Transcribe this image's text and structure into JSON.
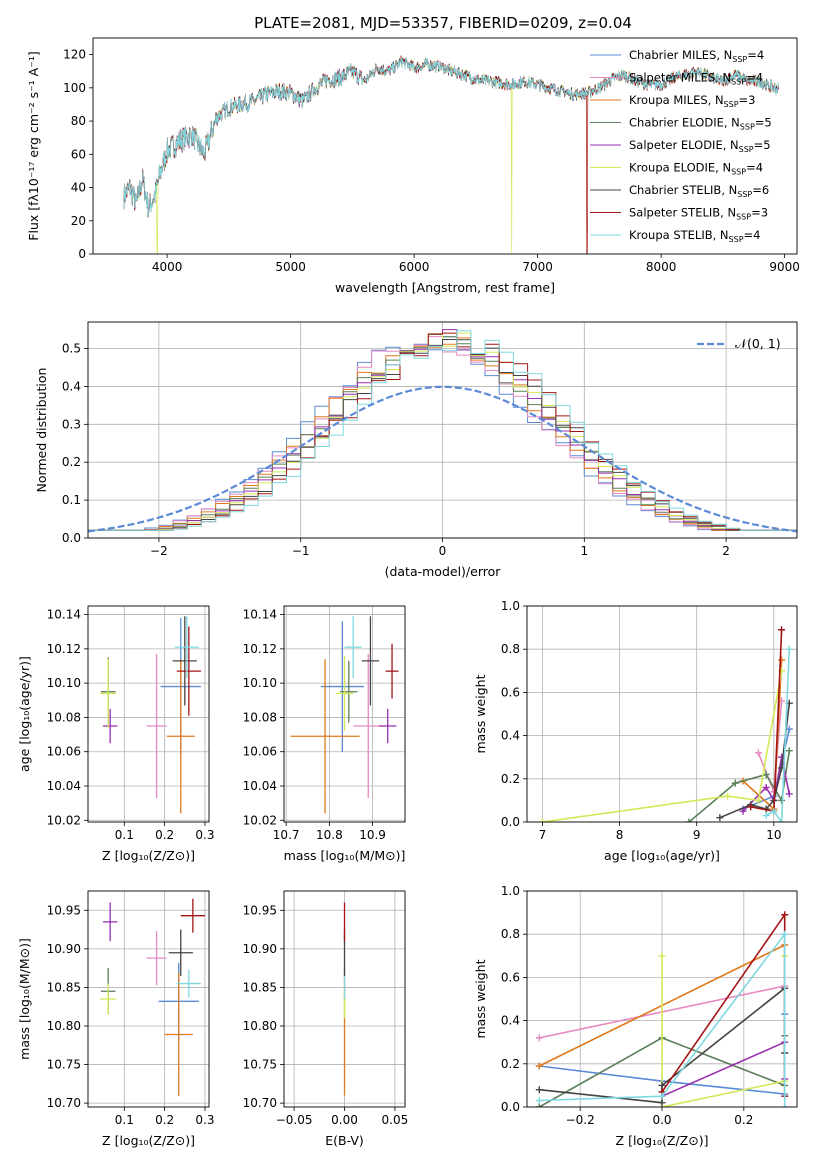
{
  "figure_title": "PLATE=2081, MJD=53357, FIBERID=0209, z=0.04",
  "colors": {
    "c1": "#5b8ad6",
    "c2": "#e689c3",
    "c3": "#e07a1f",
    "c4": "#5b7f5b",
    "c5": "#9a2fb0",
    "c6": "#d4e857",
    "c7": "#444444",
    "c8": "#a31515",
    "c9": "#7fd8e0"
  },
  "chart_data": [
    {
      "id": "spectrum",
      "type": "line",
      "title": "PLATE=2081, MJD=53357, FIBERID=0209, z=0.04",
      "xlabel": "wavelength [Angstrom, rest frame]",
      "ylabel": "Flux [fλ10⁻¹⁷ erg cm⁻² s⁻¹ A⁻¹]",
      "xlim": [
        3400,
        9100
      ],
      "ylim": [
        0,
        130
      ],
      "xticks": [
        "4000",
        "5000",
        "6000",
        "7000",
        "8000",
        "9000"
      ],
      "xtick_values": [
        4000,
        5000,
        6000,
        7000,
        8000,
        9000
      ],
      "yticks": [
        "0",
        "20",
        "40",
        "60",
        "80",
        "100",
        "120"
      ],
      "ytick_values": [
        0,
        20,
        40,
        60,
        80,
        100,
        120
      ],
      "legend": "top-right",
      "x": [
        3650,
        3700,
        3750,
        3800,
        3850,
        3900,
        3950,
        4000,
        4100,
        4200,
        4300,
        4400,
        4500,
        4600,
        4700,
        4800,
        4900,
        5000,
        5100,
        5200,
        5300,
        5400,
        5500,
        5600,
        5700,
        5800,
        5900,
        6000,
        6100,
        6200,
        6300,
        6400,
        6500,
        6600,
        6700,
        6800,
        6900,
        7000,
        7100,
        7200,
        7300,
        7400,
        7500,
        7600,
        7700,
        7800,
        7900,
        8000,
        8100,
        8200,
        8300,
        8400,
        8500,
        8600,
        8700,
        8800,
        8900,
        9000
      ],
      "flux": [
        35,
        40,
        30,
        45,
        28,
        35,
        50,
        62,
        68,
        72,
        60,
        82,
        88,
        90,
        92,
        96,
        98,
        97,
        92,
        100,
        105,
        106,
        110,
        104,
        112,
        110,
        116,
        112,
        114,
        113,
        110,
        108,
        105,
        104,
        103,
        102,
        104,
        102,
        100,
        98,
        96,
        97,
        100,
        105,
        108,
        104,
        102,
        102,
        106,
        108,
        110,
        106,
        104,
        108,
        104,
        104,
        100,
        99
      ],
      "series": [
        {
          "name": "Chabrier MILES, N_SSP=4",
          "label_main": "Chabrier MILES, N",
          "label_tail": "=4"
        },
        {
          "name": "Salpeter MILES, N_SSP=4",
          "label_main": "Salpeter MILES, N",
          "label_tail": "=4"
        },
        {
          "name": "Kroupa MILES, N_SSP=3",
          "label_main": "Kroupa MILES, N",
          "label_tail": "=3"
        },
        {
          "name": "Chabrier ELODIE, N_SSP=5",
          "label_main": "Chabrier ELODIE, N",
          "label_tail": "=5"
        },
        {
          "name": "Salpeter ELODIE, N_SSP=5",
          "label_main": "Salpeter ELODIE, N",
          "label_tail": "=5"
        },
        {
          "name": "Kroupa ELODIE, N_SSP=4",
          "label_main": "Kroupa ELODIE, N",
          "label_tail": "=4"
        },
        {
          "name": "Chabrier STELIB, N_SSP=6",
          "label_main": "Chabrier STELIB, N",
          "label_tail": "=6"
        },
        {
          "name": "Salpeter STELIB, N_SSP=3",
          "label_main": "Salpeter STELIB, N",
          "label_tail": "=3"
        },
        {
          "name": "Kroupa STELIB, N_SSP=4",
          "label_main": "Kroupa STELIB, N",
          "label_tail": "=4"
        }
      ],
      "legend_subscript": "SSP",
      "dropouts": [
        {
          "series": 5,
          "x": 3920
        },
        {
          "series": 5,
          "x": 6790
        },
        {
          "series": 7,
          "x": 7400
        }
      ]
    },
    {
      "id": "residuals",
      "type": "step-histogram",
      "xlabel": "(data-model)/error",
      "ylabel": "Normed distribution",
      "xlim": [
        -2.5,
        2.5
      ],
      "ylim": [
        0,
        0.57
      ],
      "xticks": [
        "−2",
        "−1",
        "0",
        "1",
        "2"
      ],
      "xtick_values": [
        -2,
        -1,
        0,
        1,
        2
      ],
      "yticks": [
        "0.0",
        "0.1",
        "0.2",
        "0.3",
        "0.4",
        "0.5"
      ],
      "ytick_values": [
        0,
        0.1,
        0.2,
        0.3,
        0.4,
        0.5
      ],
      "grid": true,
      "legend": "top-right",
      "reference_label": "𝒩(0, 1)",
      "reference_mean": 0,
      "reference_sigma": 1,
      "bin_width": 0.1,
      "bin_start": -2.5,
      "peak_density": 0.52
    },
    {
      "id": "age-vs-Z",
      "type": "errorbar",
      "xlabel": "Z [log₁₀(Z/Z⊙)]",
      "ylabel": "age  [log₁₀(age/yr)]",
      "xlim": [
        0.01,
        0.31
      ],
      "ylim": [
        10.019,
        10.145
      ],
      "xticks": [
        "0.1",
        "0.2",
        "0.3"
      ],
      "xtick_values": [
        0.1,
        0.2,
        0.3
      ],
      "yticks": [
        "10.02",
        "10.04",
        "10.06",
        "10.08",
        "10.10",
        "10.12",
        "10.14"
      ],
      "ytick_values": [
        10.02,
        10.04,
        10.06,
        10.08,
        10.1,
        10.12,
        10.14
      ],
      "points": [
        {
          "c": 0,
          "x": 0.24,
          "xerr": 0.05,
          "y": 10.098,
          "yerr": 0.04
        },
        {
          "c": 1,
          "x": 0.18,
          "xerr": 0.025,
          "y": 10.075,
          "yerr": 0.042
        },
        {
          "c": 2,
          "x": 0.24,
          "xerr": 0.035,
          "y": 10.069,
          "yerr": 0.045
        },
        {
          "c": 3,
          "x": 0.06,
          "xerr": 0.018,
          "y": 10.095,
          "yerr": 0.02
        },
        {
          "c": 4,
          "x": 0.065,
          "xerr": 0.018,
          "y": 10.075,
          "yerr": 0.01
        },
        {
          "c": 5,
          "x": 0.06,
          "xerr": 0.02,
          "y": 10.094,
          "yerr": 0.02
        },
        {
          "c": 6,
          "x": 0.25,
          "xerr": 0.03,
          "y": 10.113,
          "yerr": 0.026
        },
        {
          "c": 7,
          "x": 0.26,
          "xerr": 0.03,
          "y": 10.107,
          "yerr": 0.026
        },
        {
          "c": 8,
          "x": 0.255,
          "xerr": 0.03,
          "y": 10.121,
          "yerr": 0.018
        }
      ]
    },
    {
      "id": "age-vs-mass",
      "type": "errorbar",
      "xlabel": "mass [log₁₀(M/M⊙)]",
      "ylabel": "",
      "xlim": [
        10.695,
        10.975
      ],
      "ylim": [
        10.019,
        10.145
      ],
      "xticks": [
        "10.7",
        "10.8",
        "10.9"
      ],
      "xtick_values": [
        10.7,
        10.8,
        10.9
      ],
      "yticks": [
        "10.02",
        "10.04",
        "10.06",
        "10.08",
        "10.10",
        "10.12",
        "10.14"
      ],
      "ytick_values": [
        10.02,
        10.04,
        10.06,
        10.08,
        10.1,
        10.12,
        10.14
      ],
      "points": [
        {
          "c": 0,
          "x": 10.83,
          "xerr": 0.05,
          "y": 10.098,
          "yerr": 0.038
        },
        {
          "c": 1,
          "x": 10.89,
          "xerr": 0.035,
          "y": 10.075,
          "yerr": 0.042
        },
        {
          "c": 2,
          "x": 10.79,
          "xerr": 0.08,
          "y": 10.069,
          "yerr": 0.045
        },
        {
          "c": 3,
          "x": 10.845,
          "xerr": 0.02,
          "y": 10.095,
          "yerr": 0.018
        },
        {
          "c": 4,
          "x": 10.935,
          "xerr": 0.02,
          "y": 10.075,
          "yerr": 0.01
        },
        {
          "c": 5,
          "x": 10.835,
          "xerr": 0.02,
          "y": 10.094,
          "yerr": 0.022
        },
        {
          "c": 6,
          "x": 10.895,
          "xerr": 0.02,
          "y": 10.113,
          "yerr": 0.026
        },
        {
          "c": 7,
          "x": 10.945,
          "xerr": 0.015,
          "y": 10.107,
          "yerr": 0.016
        },
        {
          "c": 8,
          "x": 10.855,
          "xerr": 0.02,
          "y": 10.121,
          "yerr": 0.018
        }
      ]
    },
    {
      "id": "weight-vs-age",
      "type": "line",
      "xlabel": "age  [log₁₀(age/yr)]",
      "ylabel": "mass weight",
      "xlim": [
        6.8,
        10.3
      ],
      "ylim": [
        0,
        1.0
      ],
      "xticks": [
        "7",
        "8",
        "9",
        "10"
      ],
      "xtick_values": [
        7,
        8,
        9,
        10
      ],
      "yticks": [
        "0.0",
        "0.2",
        "0.4",
        "0.6",
        "0.8",
        "1.0"
      ],
      "ytick_values": [
        0,
        0.2,
        0.4,
        0.6,
        0.8,
        1.0
      ],
      "grid": true,
      "series": [
        {
          "c": 0,
          "x": [
            9.6,
            10.0,
            10.2
          ],
          "y": [
            0.06,
            0.12,
            0.43
          ]
        },
        {
          "c": 1,
          "x": [
            9.8,
            10.0,
            10.1
          ],
          "y": [
            0.32,
            0.14,
            0.56
          ]
        },
        {
          "c": 2,
          "x": [
            9.6,
            10.0,
            10.1
          ],
          "y": [
            0.19,
            0.06,
            0.75
          ]
        },
        {
          "c": 3,
          "x": [
            8.9,
            9.5,
            9.9,
            10.1,
            10.2
          ],
          "y": [
            0.0,
            0.18,
            0.22,
            0.1,
            0.33
          ]
        },
        {
          "c": 4,
          "x": [
            9.6,
            9.9,
            10.0,
            10.1,
            10.2
          ],
          "y": [
            0.05,
            0.16,
            0.1,
            0.3,
            0.13
          ]
        },
        {
          "c": 5,
          "x": [
            7.0,
            9.4,
            9.8,
            10.1
          ],
          "y": [
            0.0,
            0.12,
            0.1,
            0.7
          ]
        },
        {
          "c": 6,
          "x": [
            9.3,
            9.7,
            9.9,
            10.0,
            10.1,
            10.2
          ],
          "y": [
            0.02,
            0.08,
            0.06,
            0.1,
            0.25,
            0.55
          ]
        },
        {
          "c": 7,
          "x": [
            9.7,
            10.0,
            10.1
          ],
          "y": [
            0.07,
            0.05,
            0.89
          ]
        },
        {
          "c": 8,
          "x": [
            9.9,
            10.0,
            10.1,
            10.2
          ],
          "y": [
            0.03,
            0.05,
            0.0,
            0.8
          ]
        }
      ]
    },
    {
      "id": "mass-vs-Z",
      "type": "errorbar",
      "xlabel": "Z [log₁₀(Z/Z⊙)]",
      "ylabel": "mass [log₁₀(M/M⊙)]",
      "xlim": [
        0.01,
        0.31
      ],
      "ylim": [
        10.695,
        10.975
      ],
      "xticks": [
        "0.1",
        "0.2",
        "0.3"
      ],
      "xtick_values": [
        0.1,
        0.2,
        0.3
      ],
      "yticks": [
        "10.70",
        "10.75",
        "10.80",
        "10.85",
        "10.90",
        "10.95"
      ],
      "ytick_values": [
        10.7,
        10.75,
        10.8,
        10.85,
        10.9,
        10.95
      ],
      "points": [
        {
          "c": 0,
          "x": 0.235,
          "xerr": 0.05,
          "y": 10.832,
          "yerr": 0.05
        },
        {
          "c": 1,
          "x": 0.18,
          "xerr": 0.025,
          "y": 10.888,
          "yerr": 0.035
        },
        {
          "c": 2,
          "x": 0.235,
          "xerr": 0.035,
          "y": 10.789,
          "yerr": 0.08
        },
        {
          "c": 3,
          "x": 0.06,
          "xerr": 0.018,
          "y": 10.845,
          "yerr": 0.03
        },
        {
          "c": 4,
          "x": 0.065,
          "xerr": 0.018,
          "y": 10.935,
          "yerr": 0.025
        },
        {
          "c": 5,
          "x": 0.06,
          "xerr": 0.02,
          "y": 10.835,
          "yerr": 0.02
        },
        {
          "c": 6,
          "x": 0.24,
          "xerr": 0.03,
          "y": 10.895,
          "yerr": 0.03
        },
        {
          "c": 7,
          "x": 0.27,
          "xerr": 0.03,
          "y": 10.943,
          "yerr": 0.022
        },
        {
          "c": 8,
          "x": 0.26,
          "xerr": 0.03,
          "y": 10.855,
          "yerr": 0.018
        }
      ]
    },
    {
      "id": "mass-vs-EBV",
      "type": "errorbar",
      "xlabel": "E(B-V)",
      "ylabel": "",
      "xlim": [
        -0.06,
        0.06
      ],
      "ylim": [
        10.695,
        10.975
      ],
      "xticks": [
        "−0.05",
        "0.00",
        "0.05"
      ],
      "xtick_values": [
        -0.05,
        0.0,
        0.05
      ],
      "yticks": [
        "10.70",
        "10.75",
        "10.80",
        "10.85",
        "10.90",
        "10.95"
      ],
      "ytick_values": [
        10.7,
        10.75,
        10.8,
        10.85,
        10.9,
        10.95
      ],
      "points": [
        {
          "c": 2,
          "x": 0.0,
          "xerr": 0,
          "y": 10.79,
          "yerr": 0.08
        },
        {
          "c": 5,
          "x": 0.0,
          "xerr": 0,
          "y": 10.835,
          "yerr": 0.025
        },
        {
          "c": 8,
          "x": 0.0,
          "xerr": 0,
          "y": 10.855,
          "yerr": 0.02
        },
        {
          "c": 6,
          "x": 0.0,
          "xerr": 0,
          "y": 10.895,
          "yerr": 0.03
        },
        {
          "c": 7,
          "x": 0.0,
          "xerr": 0,
          "y": 10.935,
          "yerr": 0.025
        }
      ]
    },
    {
      "id": "weight-vs-Z",
      "type": "line",
      "xlabel": "Z [log₁₀(Z/Z⊙)]",
      "ylabel": "mass weight",
      "xlim": [
        -0.33,
        0.33
      ],
      "ylim": [
        0,
        1.0
      ],
      "xticks": [
        "−0.2",
        "0.0",
        "0.2"
      ],
      "xtick_values": [
        -0.2,
        0.0,
        0.2
      ],
      "yticks": [
        "0.0",
        "0.2",
        "0.4",
        "0.6",
        "0.8",
        "1.0"
      ],
      "ytick_values": [
        0,
        0.2,
        0.4,
        0.6,
        0.8,
        1.0
      ],
      "grid": true,
      "series": [
        {
          "c": 0,
          "x": [
            -0.3,
            0.0,
            0.3,
            0.3,
            0.3
          ],
          "y": [
            0.19,
            0.12,
            0.06,
            0.43,
            0.8
          ]
        },
        {
          "c": 1,
          "x": [
            -0.3,
            0.3
          ],
          "y": [
            0.32,
            0.56
          ]
        },
        {
          "c": 2,
          "x": [
            -0.3,
            0.3
          ],
          "y": [
            0.19,
            0.75
          ]
        },
        {
          "c": 3,
          "x": [
            -0.3,
            0.0,
            0.3,
            0.3
          ],
          "y": [
            0.0,
            0.32,
            0.1,
            0.33
          ]
        },
        {
          "c": 4,
          "x": [
            0.0,
            0.3,
            0.3
          ],
          "y": [
            0.05,
            0.3,
            0.13
          ]
        },
        {
          "c": 5,
          "x": [
            0.0,
            0.0,
            0.3,
            0.3
          ],
          "y": [
            0.7,
            0.0,
            0.12,
            0.7
          ]
        },
        {
          "c": 6,
          "x": [
            -0.3,
            0.0,
            0.0,
            0.3,
            0.3
          ],
          "y": [
            0.08,
            0.02,
            0.1,
            0.55,
            0.25
          ]
        },
        {
          "c": 7,
          "x": [
            0.0,
            0.3,
            0.3
          ],
          "y": [
            0.07,
            0.89,
            0.05
          ]
        },
        {
          "c": 8,
          "x": [
            -0.3,
            0.0,
            0.3,
            0.3
          ],
          "y": [
            0.03,
            0.05,
            0.8,
            0.0
          ]
        }
      ]
    }
  ]
}
